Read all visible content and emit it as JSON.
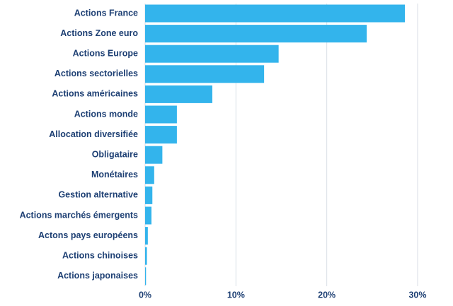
{
  "chart_data": {
    "type": "hbar",
    "categories": [
      "Actions France",
      "Actions Zone euro",
      "Actions Europe",
      "Actions sectorielles",
      "Actions américaines",
      "Actions monde",
      "Allocation diversifiée",
      "Obligataire",
      "Monétaires",
      "Gestion alternative",
      "Actions marchés émergents",
      "Actons pays européens",
      "Actions chinoises",
      "Actions japonaises"
    ],
    "values": [
      28.6,
      24.4,
      14.7,
      13.1,
      7.4,
      3.5,
      3.5,
      1.9,
      1.0,
      0.8,
      0.7,
      0.3,
      0.2,
      0.1
    ],
    "color": "#33b4ec",
    "xlim": [
      0,
      30
    ],
    "xticks": [
      {
        "value": 0,
        "label": "0%"
      },
      {
        "value": 10,
        "label": "10%"
      },
      {
        "value": 20,
        "label": "20%"
      },
      {
        "value": 30,
        "label": "30%"
      }
    ],
    "grid": true
  }
}
